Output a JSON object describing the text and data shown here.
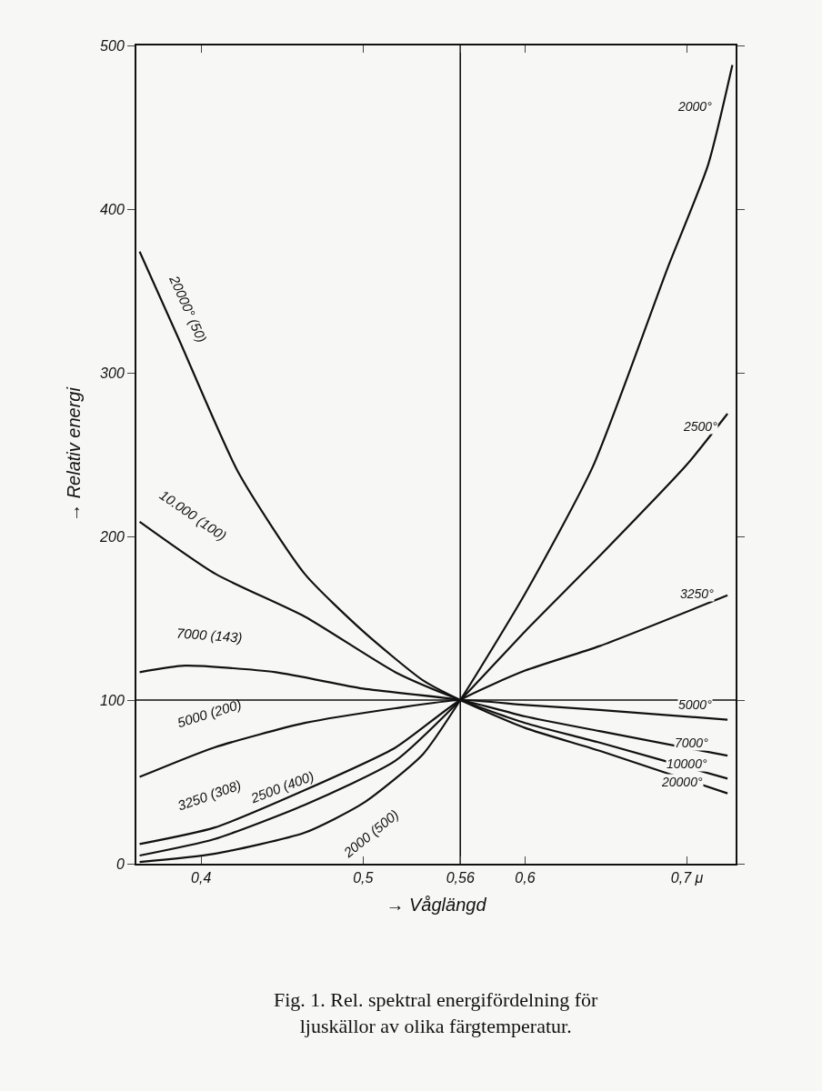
{
  "chart_data": {
    "type": "line",
    "xlabel": "→ Våglängd",
    "ylabel": "→ Relativ energi",
    "xlim": [
      0.36,
      0.73
    ],
    "ylim": [
      0,
      500
    ],
    "xticks": [
      {
        "value": 0.4,
        "label": "0,4"
      },
      {
        "value": 0.5,
        "label": "0,5"
      },
      {
        "value": 0.56,
        "label": "0,56"
      },
      {
        "value": 0.6,
        "label": "0,6"
      },
      {
        "value": 0.7,
        "label": "0,7 μ"
      }
    ],
    "yticks": [
      0,
      100,
      200,
      300,
      400,
      500
    ],
    "grid": false,
    "legend": false,
    "marker": "none",
    "line_style": "solid",
    "series": [
      {
        "name": "20000° (50)",
        "color": "#111111",
        "x": [
          0.362,
          0.386,
          0.423,
          0.464,
          0.5,
          0.537,
          0.56,
          0.6,
          0.646,
          0.725
        ],
        "values": [
          374,
          321,
          239,
          177,
          142,
          112,
          100,
          83,
          69,
          43
        ]
      },
      {
        "name": "10.000 (100)",
        "color": "#111111",
        "x": [
          0.362,
          0.409,
          0.464,
          0.52,
          0.56,
          0.6,
          0.646,
          0.725
        ],
        "values": [
          209,
          177,
          151,
          117,
          100,
          86,
          74,
          52
        ]
      },
      {
        "name": "7000 (143)",
        "color": "#111111",
        "x": [
          0.362,
          0.39,
          0.446,
          0.5,
          0.56,
          0.6,
          0.646,
          0.725
        ],
        "values": [
          117,
          121,
          117,
          107,
          100,
          90,
          81,
          66
        ]
      },
      {
        "name": "5000 (200)",
        "color": "#111111",
        "x": [
          0.362,
          0.408,
          0.464,
          0.52,
          0.56,
          0.6,
          0.646,
          0.725
        ],
        "values": [
          53,
          71,
          86,
          95,
          100,
          97,
          94,
          88
        ]
      },
      {
        "name": "3250 (308)",
        "color": "#111111",
        "x": [
          0.362,
          0.408,
          0.464,
          0.52,
          0.56,
          0.6,
          0.646,
          0.725
        ],
        "values": [
          12,
          22,
          45,
          71,
          100,
          118,
          133,
          164
        ]
      },
      {
        "name": "2500 (400)",
        "color": "#111111",
        "x": [
          0.362,
          0.408,
          0.464,
          0.52,
          0.56,
          0.6,
          0.646,
          0.7,
          0.725
        ],
        "values": [
          5,
          15,
          36,
          63,
          100,
          142,
          188,
          244,
          275
        ]
      },
      {
        "name": "2000 (500)",
        "color": "#111111",
        "x": [
          0.362,
          0.408,
          0.464,
          0.5,
          0.537,
          0.56,
          0.6,
          0.642,
          0.688,
          0.713,
          0.728
        ],
        "values": [
          1,
          6,
          19,
          37,
          67,
          100,
          165,
          243,
          364,
          427,
          488
        ]
      }
    ],
    "ref_lines": [
      {
        "axis": "y",
        "value": 100,
        "color": "#111111"
      },
      {
        "axis": "x",
        "value": 0.56,
        "color": "#111111"
      }
    ],
    "annotations": [
      {
        "text": "2000°",
        "x": 0.705,
        "y": 463
      },
      {
        "text": "2500°",
        "x": 0.708,
        "y": 267
      },
      {
        "text": "3250°",
        "x": 0.706,
        "y": 165
      },
      {
        "text": "5000°",
        "x": 0.705,
        "y": 97
      },
      {
        "text": "7000°",
        "x": 0.703,
        "y": 74
      },
      {
        "text": "10000°",
        "x": 0.7,
        "y": 61
      },
      {
        "text": "20000°",
        "x": 0.697,
        "y": 50
      },
      "Fig. 1. Rel. spektral energifördelning för ljuskällor av olika färgtemperatur."
    ]
  }
}
